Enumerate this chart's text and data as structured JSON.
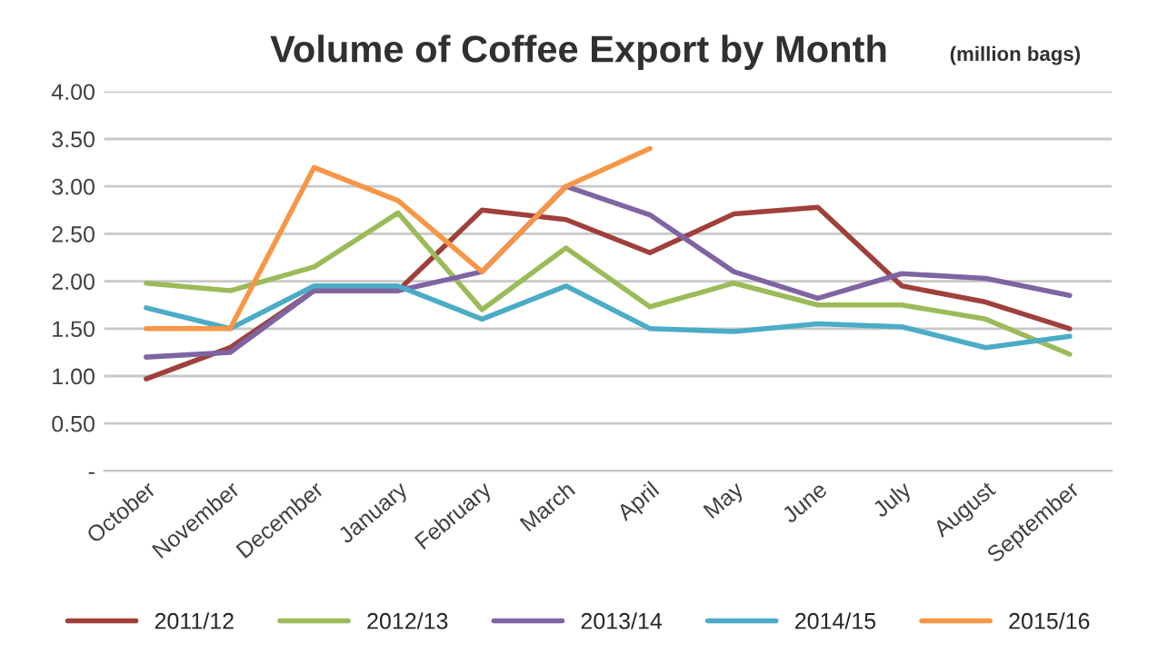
{
  "chart_data": {
    "type": "line",
    "title": "Volume of Coffee Export by Month",
    "subtitle": "(million bags)",
    "categories": [
      "October",
      "November",
      "December",
      "January",
      "February",
      "March",
      "April",
      "May",
      "June",
      "July",
      "August",
      "September"
    ],
    "series": [
      {
        "name": "2011/12",
        "color": "#a0403c",
        "values": [
          0.97,
          1.3,
          1.9,
          1.9,
          2.75,
          2.65,
          2.3,
          2.71,
          2.78,
          1.95,
          1.78,
          1.5
        ]
      },
      {
        "name": "2012/13",
        "color": "#9bbb59",
        "values": [
          1.98,
          1.9,
          2.15,
          2.72,
          1.7,
          2.35,
          1.73,
          1.98,
          1.75,
          1.75,
          1.6,
          1.23
        ]
      },
      {
        "name": "2013/14",
        "color": "#7f64a2",
        "values": [
          1.2,
          1.25,
          1.9,
          1.9,
          2.1,
          3.0,
          2.7,
          2.1,
          1.82,
          2.08,
          2.03,
          1.85
        ]
      },
      {
        "name": "2014/15",
        "color": "#4bacc6",
        "values": [
          1.72,
          1.5,
          1.95,
          1.95,
          1.6,
          1.95,
          1.5,
          1.47,
          1.55,
          1.52,
          1.3,
          1.42
        ]
      },
      {
        "name": "2015/16",
        "color": "#f79646",
        "values": [
          1.5,
          1.5,
          3.2,
          2.85,
          2.1,
          3.0,
          3.4,
          null,
          null,
          null,
          null,
          null
        ]
      }
    ],
    "ylim": [
      0,
      4
    ],
    "yticks": [
      {
        "value": 0,
        "label": "-"
      },
      {
        "value": 0.5,
        "label": "0.50"
      },
      {
        "value": 1,
        "label": "1.00"
      },
      {
        "value": 1.5,
        "label": "1.50"
      },
      {
        "value": 2,
        "label": "2.00"
      },
      {
        "value": 2.5,
        "label": "2.50"
      },
      {
        "value": 3,
        "label": "3.00"
      },
      {
        "value": 3.5,
        "label": "3.50"
      },
      {
        "value": 4,
        "label": "4.00"
      }
    ],
    "grid": "y",
    "legend": "bottom",
    "line_style": "solid",
    "marker": "none"
  }
}
